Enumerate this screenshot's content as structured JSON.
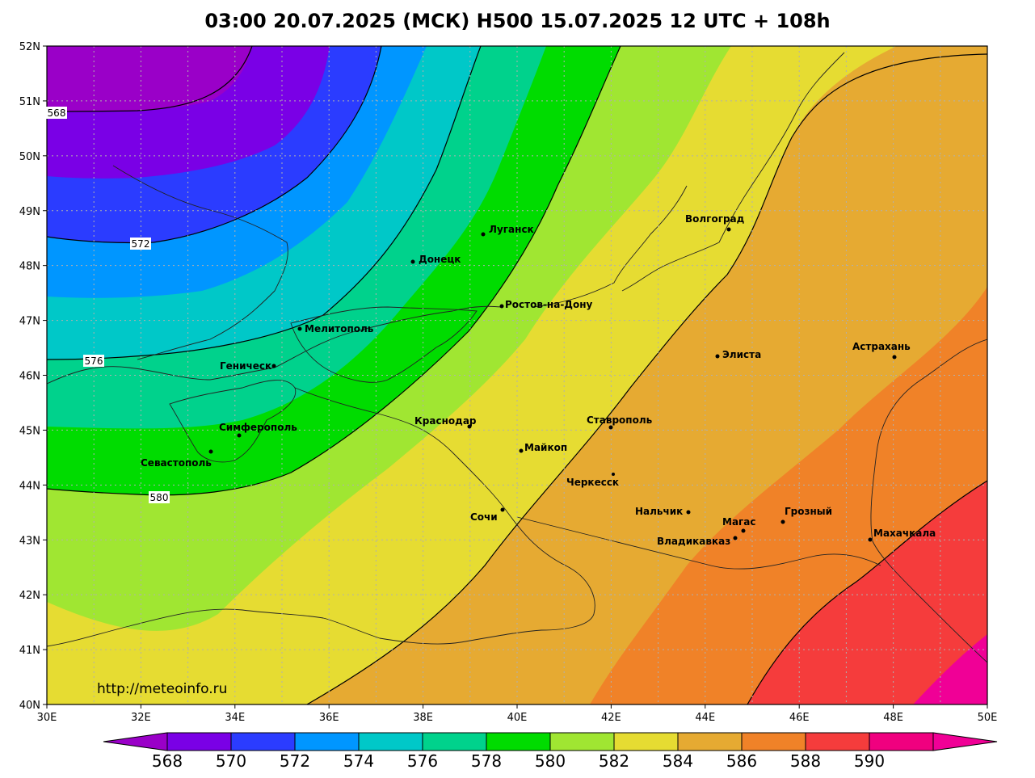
{
  "title": "03:00 20.07.2025 (МСК) H500  15.07.2025 12 UTC + 108h",
  "source_url": "http://meteoinfo.ru",
  "map": {
    "lon_range": [
      30,
      50
    ],
    "lat_range": [
      40,
      52
    ],
    "lon_ticks": [
      "30E",
      "32E",
      "34E",
      "36E",
      "38E",
      "40E",
      "42E",
      "44E",
      "46E",
      "48E",
      "50E"
    ],
    "lat_ticks": [
      "52N",
      "51N",
      "50N",
      "49N",
      "48N",
      "47N",
      "46N",
      "45N",
      "44N",
      "43N",
      "42N",
      "41N",
      "40N"
    ],
    "grid": "dotted"
  },
  "legend": {
    "labels": [
      "568",
      "570",
      "572",
      "574",
      "576",
      "578",
      "580",
      "582",
      "584",
      "586",
      "588",
      "590"
    ],
    "colors": [
      "#9a00c8",
      "#7a00e6",
      "#2b3cff",
      "#0096ff",
      "#00c8c8",
      "#00d28c",
      "#00dc00",
      "#a0e632",
      "#e6dc32",
      "#e6aa32",
      "#f08228",
      "#f53c3c",
      "#f0007f",
      "#f00096"
    ]
  },
  "contour_labels": [
    {
      "id": "c568",
      "text": "568"
    },
    {
      "id": "c572",
      "text": "572"
    },
    {
      "id": "c576",
      "text": "576"
    },
    {
      "id": "c580",
      "text": "580"
    }
  ],
  "cities": [
    {
      "id": "luhansk",
      "name": "Луганск"
    },
    {
      "id": "donetsk",
      "name": "Донецк"
    },
    {
      "id": "rostov",
      "name": "Ростов-на-Дону"
    },
    {
      "id": "melitopol",
      "name": "Мелитополь"
    },
    {
      "id": "genichesk",
      "name": "Геническ"
    },
    {
      "id": "simferopol",
      "name": "Симферополь"
    },
    {
      "id": "sevastopol",
      "name": "Севастополь"
    },
    {
      "id": "krasnodar",
      "name": "Краснодар"
    },
    {
      "id": "maykop",
      "name": "Майкоп"
    },
    {
      "id": "stavropol",
      "name": "Ставрополь"
    },
    {
      "id": "cherkessk",
      "name": "Черкесск"
    },
    {
      "id": "sochi",
      "name": "Сочи"
    },
    {
      "id": "nalchik",
      "name": "Нальчик"
    },
    {
      "id": "magas",
      "name": "Магас"
    },
    {
      "id": "vladikavkaz",
      "name": "Владикавказ"
    },
    {
      "id": "grozny",
      "name": "Грозный"
    },
    {
      "id": "makhachkala",
      "name": "Махачкала"
    },
    {
      "id": "volgograd",
      "name": "Волгоград"
    },
    {
      "id": "elista",
      "name": "Элиста"
    },
    {
      "id": "astrakhan",
      "name": "Астрахань"
    }
  ]
}
